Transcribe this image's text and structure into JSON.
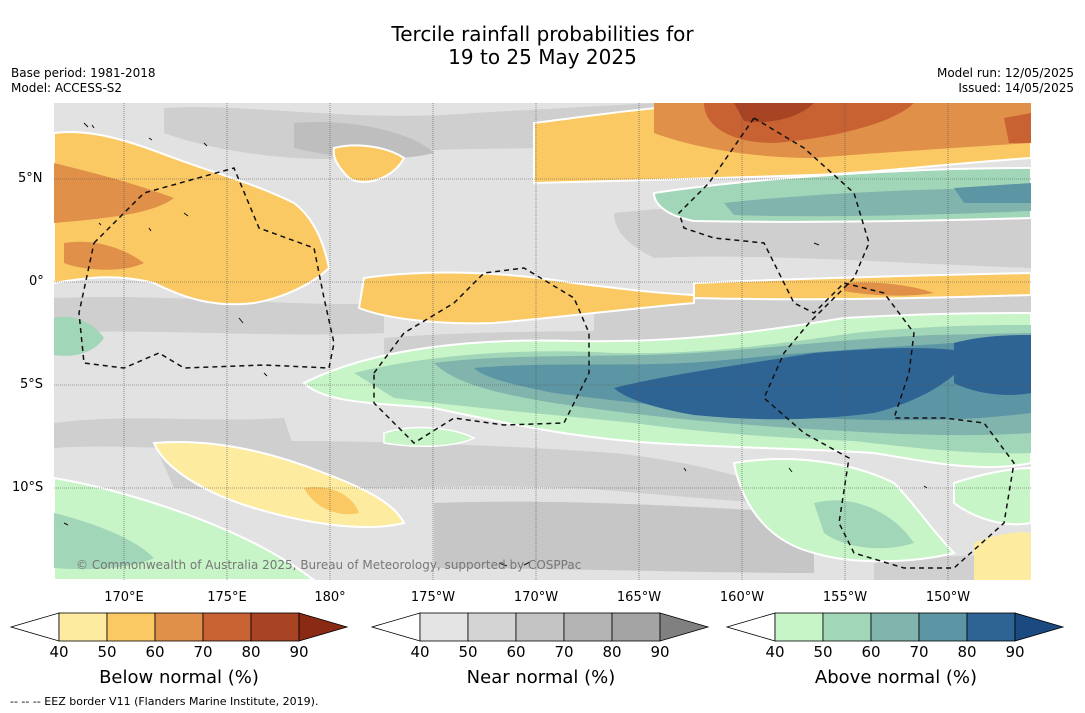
{
  "title_line1": "Tercile rainfall probabilities for",
  "title_line2": "19 to 25 May 2025",
  "base_period": "Base period: 1981-2018",
  "model": "Model: ACCESS-S2",
  "model_run": "Model run: 12/05/2025",
  "issued": "Issued: 14/05/2025",
  "lat_labels": [
    "5°N",
    "0°",
    "5°S",
    "10°S"
  ],
  "lon_labels": [
    "170°E",
    "175°E",
    "180°",
    "175°W",
    "170°W",
    "165°W",
    "160°W",
    "155°W",
    "150°W"
  ],
  "copyright": "© Commonwealth of Australia 2025, Bureau of Meteorology, supported by COSPPac",
  "footnote": "--  --  -- EEZ border V11 (Flanders Marine Institute, 2019).",
  "colorbars": [
    {
      "label": "Below normal (%)",
      "ticks": [
        "40",
        "50",
        "60",
        "70",
        "80",
        "90"
      ],
      "colors": [
        "#ffffff",
        "#fdeca0",
        "#fbc964",
        "#e09048",
        "#c86232",
        "#a84424",
        "#8a2a14"
      ]
    },
    {
      "label": "Near normal (%)",
      "ticks": [
        "40",
        "50",
        "60",
        "70",
        "80",
        "90"
      ],
      "colors": [
        "#ffffff",
        "#e4e4e4",
        "#d4d4d4",
        "#c4c4c4",
        "#b4b4b4",
        "#a4a4a4",
        "#808080"
      ]
    },
    {
      "label": "Above normal (%)",
      "ticks": [
        "40",
        "50",
        "60",
        "70",
        "80",
        "90"
      ],
      "colors": [
        "#ffffff",
        "#c8f5c8",
        "#a2d6b8",
        "#80b4ac",
        "#5c96a4",
        "#2e6494",
        "#1a4a80"
      ]
    }
  ]
}
